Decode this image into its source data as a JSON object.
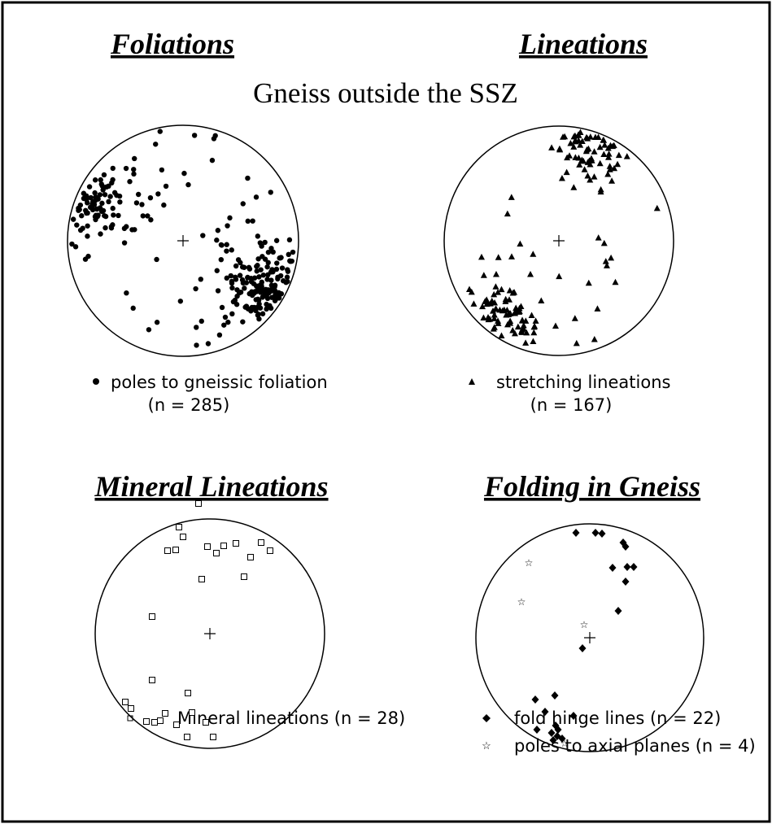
{
  "header": {
    "subtitle": "Gneiss outside the SSZ"
  },
  "panels": [
    {
      "title": "Foliations",
      "legend": [
        "poles to gneissic foliation",
        "(n = 285)"
      ]
    },
    {
      "title": "Lineations",
      "legend": [
        "stretching lineations",
        "(n = 167)"
      ]
    },
    {
      "title": "Mineral Lineations",
      "legend": [
        "Mineral lineations  (n = 28)"
      ]
    },
    {
      "title": "Folding in Gneiss",
      "legend": [
        "fold hinge lines  (n = 22)",
        "poles to axial planes (n = 4)"
      ]
    }
  ]
}
